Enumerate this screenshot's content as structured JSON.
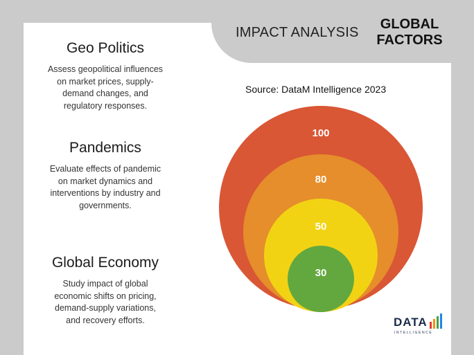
{
  "header": {
    "title": "IMPACT ANALYSIS",
    "badge_line1": "GLOBAL",
    "badge_line2": "FACTORS"
  },
  "source": "Source: DataM Intelligence  2023",
  "factors": [
    {
      "title": "Geo Politics",
      "description": "Assess geopolitical influences on market prices, supply-demand changes, and regulatory responses."
    },
    {
      "title": "Pandemics",
      "description": "Evaluate effects of pandemic on market dynamics and interventions by industry and governments."
    },
    {
      "title": "Global Economy",
      "description": "Study impact of global economic shifts on pricing, demand-supply variations, and recovery efforts."
    }
  ],
  "rings": [
    {
      "value": "100",
      "color": "#d95735"
    },
    {
      "value": "80",
      "color": "#e58e2b"
    },
    {
      "value": "50",
      "color": "#f2d314"
    },
    {
      "value": "30",
      "color": "#62a83e"
    }
  ],
  "logo": {
    "main": "DATA",
    "sub": "INTELLIGENCE",
    "bar_colors": [
      "#e53935",
      "#fb8c00",
      "#43a047",
      "#1e88e5"
    ]
  }
}
